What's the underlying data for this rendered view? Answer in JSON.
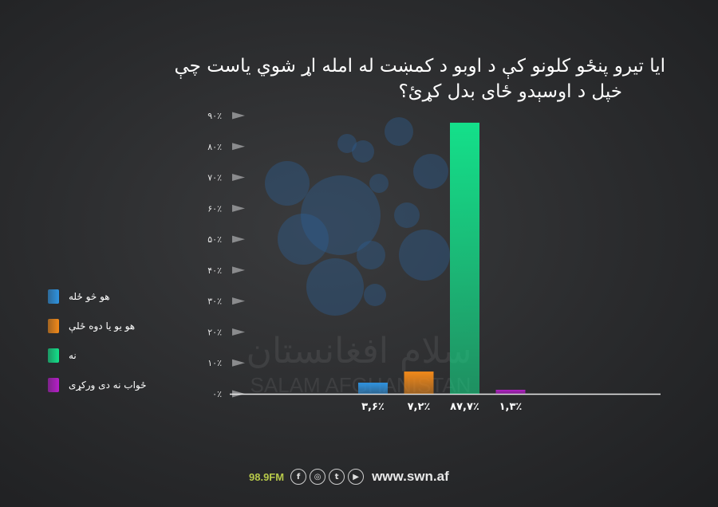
{
  "title_lines": [
    "ایا تیرو پنځو کلونو کې د اوبو د کمښت له امله اړ شوي یاست چې",
    "خپل د اوسېدو ځای بدل کړئ؟"
  ],
  "chart_data": {
    "type": "bar",
    "title": "ایا تیرو پنځو کلونو کې د اوبو د کمښت له امله اړ شوي یاست چې خپل د اوسېدو ځای بدل کړئ؟",
    "categories": [
      "هو څو ځله",
      "هو یو یا دوه ځلې",
      "نه",
      "ځواب نه دی ورکړی"
    ],
    "values": [
      3.6,
      7.2,
      87.7,
      1.3
    ],
    "data_labels": [
      "۳,۶٪",
      "۷,۲٪",
      "۸۷,۷٪",
      "۱,۳٪"
    ],
    "y_ticks": [
      0,
      10,
      20,
      30,
      40,
      50,
      60,
      70,
      80,
      90
    ],
    "y_tick_labels": [
      "۰٪",
      "۱۰٪",
      "۲۰٪",
      "۳۰٪",
      "۴۰٪",
      "۵۰٪",
      "۶۰٪",
      "۷۰٪",
      "۸۰٪",
      "۹۰٪"
    ],
    "ylim": [
      0,
      90
    ],
    "colors": [
      "#2f93e0",
      "#f28a1a",
      "#14e08a",
      "#b61fc9"
    ],
    "legend_position": "left",
    "xlabel": "",
    "ylabel": ""
  },
  "watermark": {
    "text_fa": "سلام افغانستان",
    "text_en": "SALAM AFGHANISTAN"
  },
  "footer": {
    "frequency": "98.9FM",
    "icons": [
      "facebook-icon",
      "instagram-icon",
      "twitter-icon",
      "youtube-icon"
    ],
    "website": "www.swn.af"
  }
}
